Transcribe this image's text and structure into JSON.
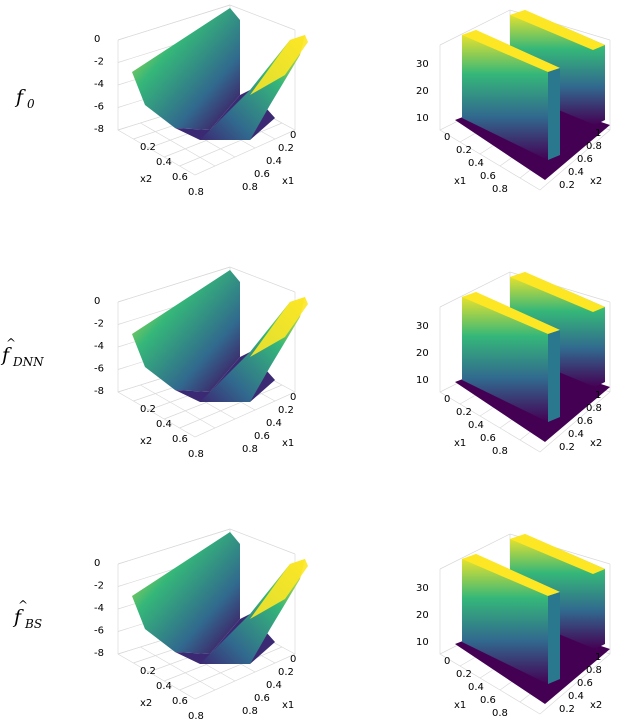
{
  "rows": [
    {
      "label": {
        "main": "f",
        "sub": "0",
        "hat": false
      }
    },
    {
      "label": {
        "main": "f",
        "sub": "DNN",
        "hat": true
      }
    },
    {
      "label": {
        "main": "f",
        "sub": "BS",
        "hat": true
      }
    }
  ],
  "chart_data": [
    {
      "type": "surface3d",
      "row": 0,
      "col": 0,
      "axes": {
        "x": "x1",
        "y": "x2"
      },
      "x_ticks": [
        "0",
        "0.2",
        "0.4",
        "0.6",
        "0.8"
      ],
      "y_ticks": [
        "0",
        "0.2",
        "0.4",
        "0.6",
        "0.8"
      ],
      "z_ticks": [
        "0",
        "-2",
        "-4",
        "-6",
        "-8"
      ],
      "zlim": [
        -8,
        0
      ],
      "colormap": "viridis",
      "colors": [
        "#440154",
        "#31688e",
        "#35b779",
        "#fde725"
      ]
    },
    {
      "type": "surface3d",
      "row": 0,
      "col": 1,
      "axes": {
        "x": "x1",
        "y": "x2"
      },
      "x_ticks": [
        "0",
        "0.2",
        "0.4",
        "0.6",
        "0.8"
      ],
      "y_ticks": [
        "0.2",
        "0.4",
        "0.6",
        "0.8",
        "1"
      ],
      "z_ticks": [
        "10",
        "20",
        "30"
      ],
      "zlim": [
        0,
        38
      ],
      "colormap": "viridis",
      "colors": [
        "#440154",
        "#31688e",
        "#35b779",
        "#fde725"
      ]
    },
    {
      "type": "surface3d",
      "row": 1,
      "col": 0,
      "axes": {
        "x": "x1",
        "y": "x2"
      },
      "x_ticks": [
        "0",
        "0.2",
        "0.4",
        "0.6",
        "0.8"
      ],
      "y_ticks": [
        "0",
        "0.2",
        "0.4",
        "0.6",
        "0.8"
      ],
      "z_ticks": [
        "0",
        "-2",
        "-4",
        "-6",
        "-8"
      ],
      "zlim": [
        -8,
        0
      ],
      "colormap": "viridis",
      "colors": [
        "#440154",
        "#31688e",
        "#35b779",
        "#fde725"
      ]
    },
    {
      "type": "surface3d",
      "row": 1,
      "col": 1,
      "axes": {
        "x": "x1",
        "y": "x2"
      },
      "x_ticks": [
        "0",
        "0.2",
        "0.4",
        "0.6",
        "0.8"
      ],
      "y_ticks": [
        "0.2",
        "0.4",
        "0.6",
        "0.8",
        "1"
      ],
      "z_ticks": [
        "10",
        "20",
        "30"
      ],
      "zlim": [
        0,
        38
      ],
      "colormap": "viridis",
      "colors": [
        "#440154",
        "#31688e",
        "#35b779",
        "#fde725"
      ]
    },
    {
      "type": "surface3d",
      "row": 2,
      "col": 0,
      "axes": {
        "x": "x1",
        "y": "x2"
      },
      "x_ticks": [
        "0",
        "0.2",
        "0.4",
        "0.6",
        "0.8"
      ],
      "y_ticks": [
        "0",
        "0.2",
        "0.4",
        "0.6",
        "0.8"
      ],
      "z_ticks": [
        "0",
        "-2",
        "-4",
        "-6",
        "-8"
      ],
      "zlim": [
        -8,
        0
      ],
      "colormap": "viridis",
      "colors": [
        "#440154",
        "#31688e",
        "#35b779",
        "#fde725"
      ]
    },
    {
      "type": "surface3d",
      "row": 2,
      "col": 1,
      "axes": {
        "x": "x1",
        "y": "x2"
      },
      "x_ticks": [
        "0",
        "0.2",
        "0.4",
        "0.6",
        "0.8"
      ],
      "y_ticks": [
        "0.2",
        "0.4",
        "0.6",
        "0.8",
        "1"
      ],
      "z_ticks": [
        "10",
        "20",
        "30"
      ],
      "zlim": [
        0,
        38
      ],
      "colormap": "viridis",
      "colors": [
        "#440154",
        "#31688e",
        "#35b779",
        "#fde725"
      ]
    }
  ]
}
